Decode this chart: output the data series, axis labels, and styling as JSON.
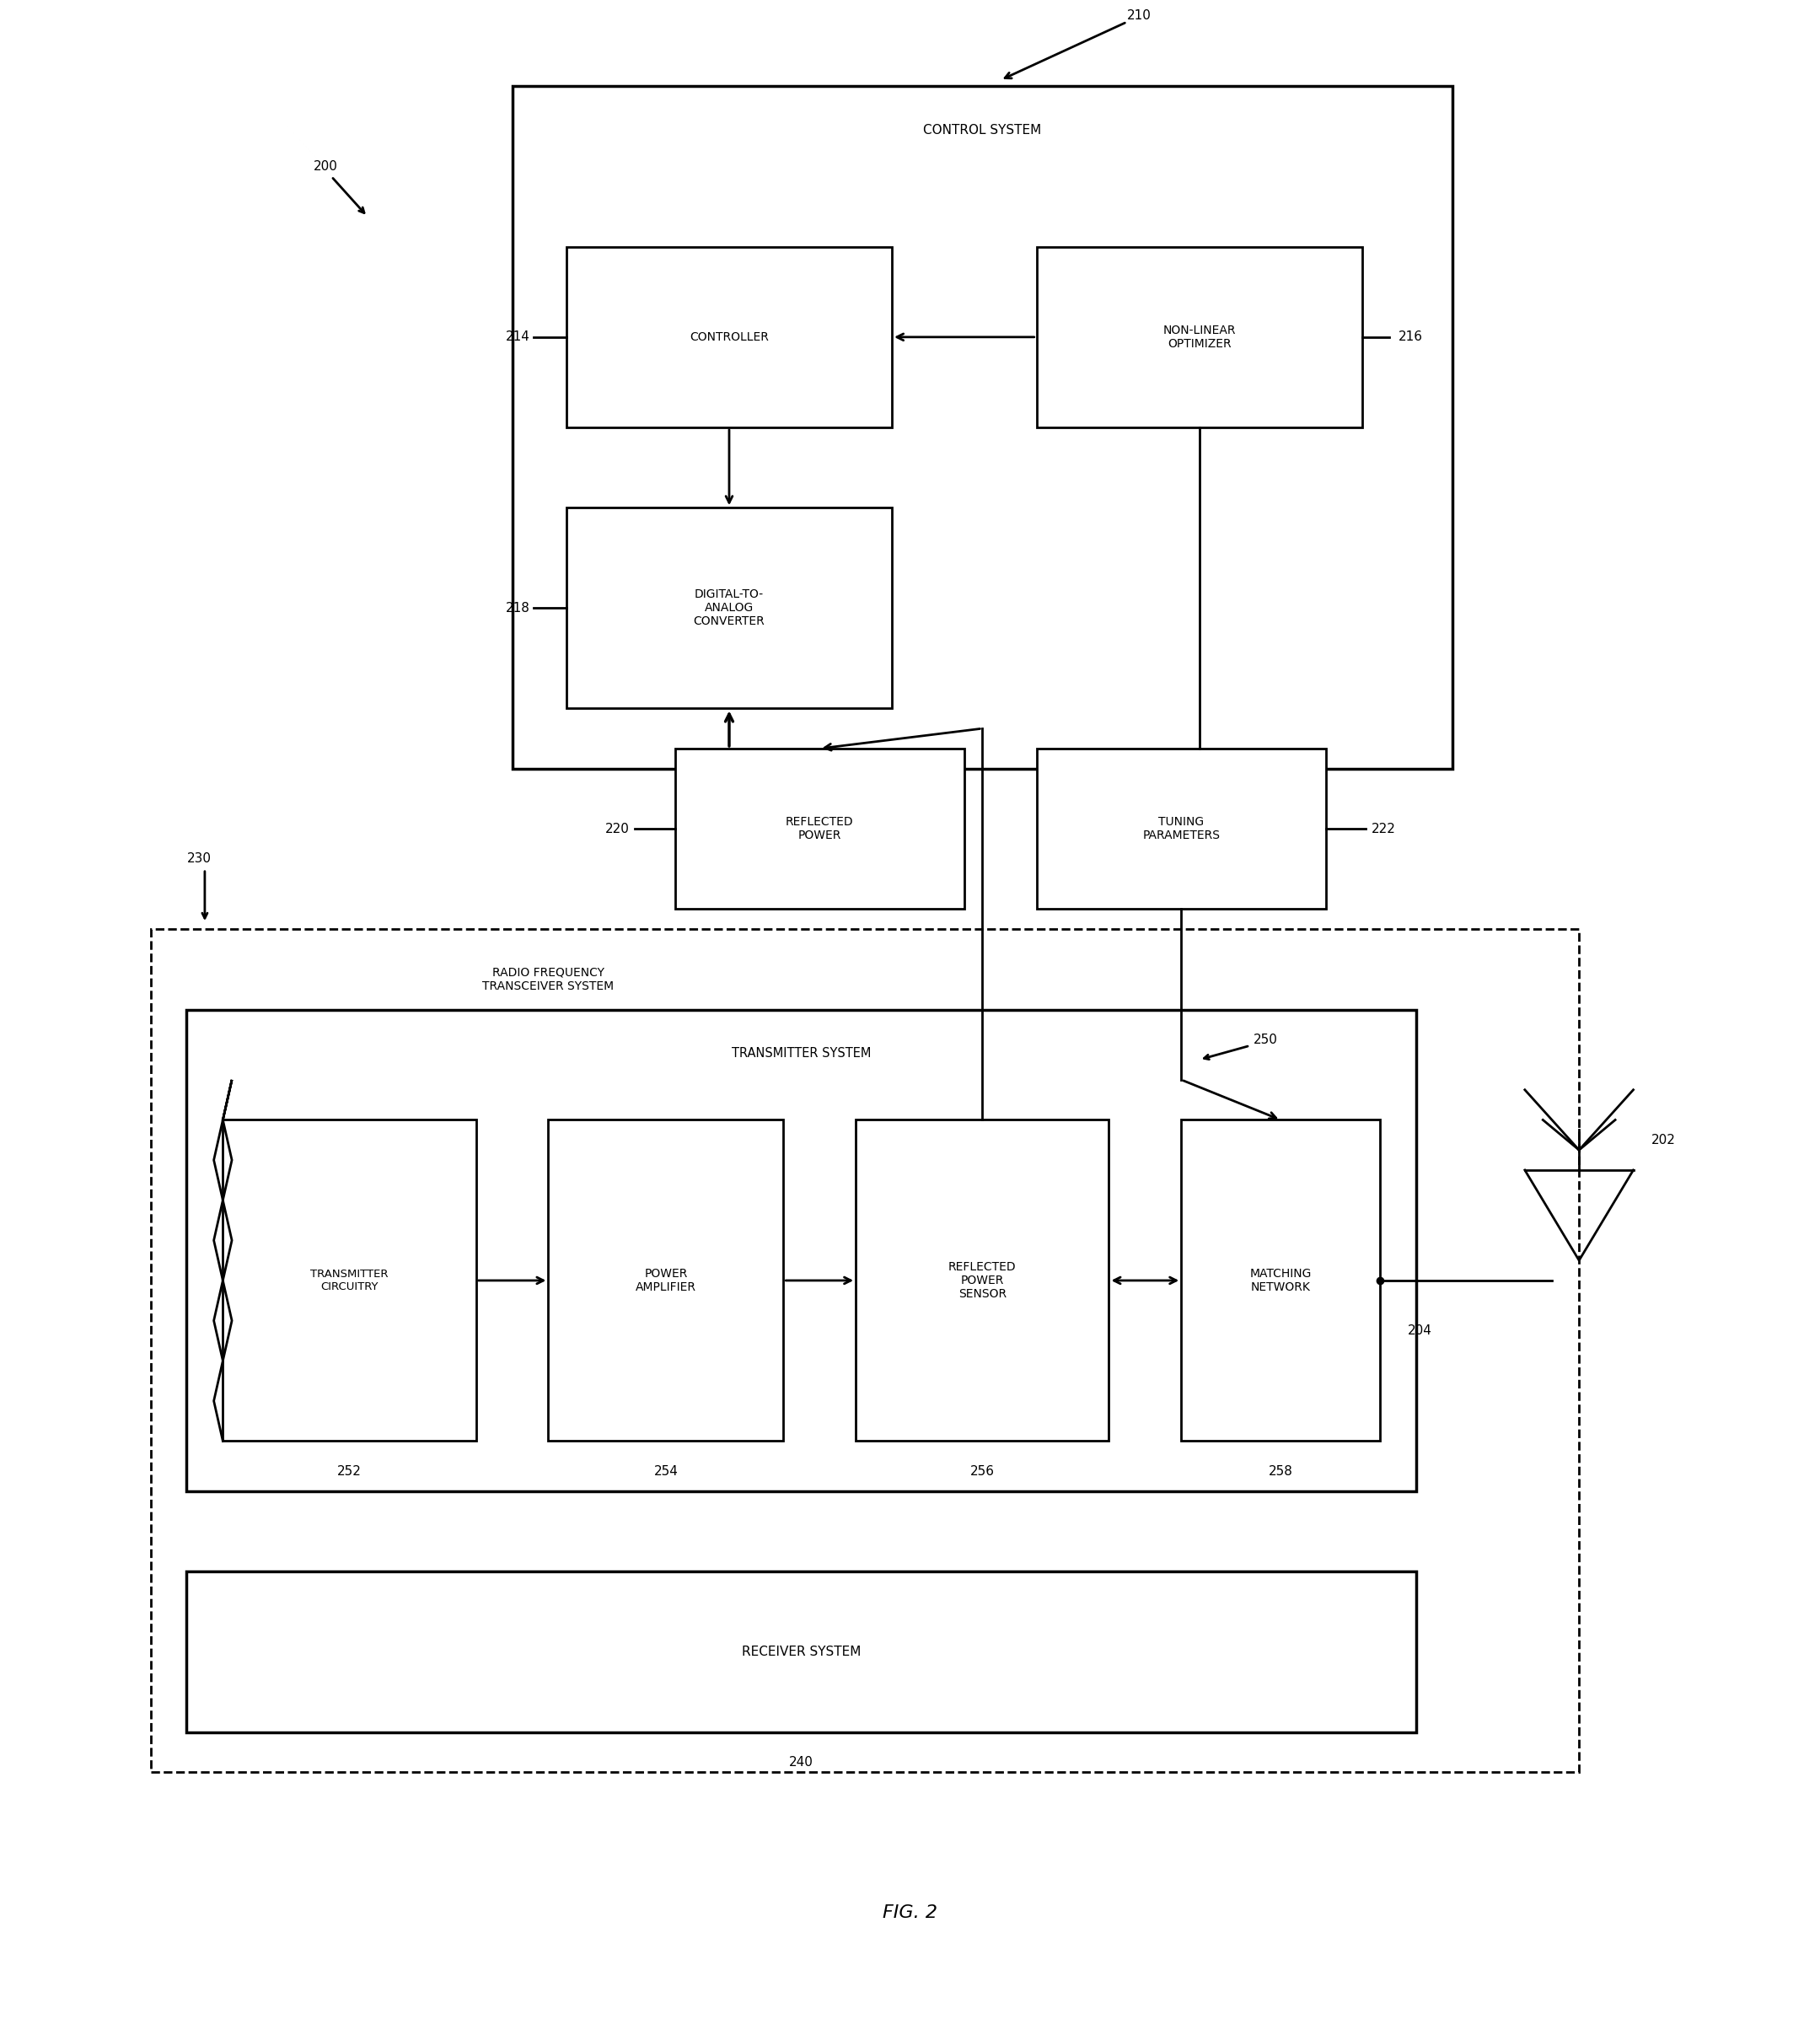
{
  "title": "FIG. 2",
  "bg_color": "#ffffff",
  "line_color": "#000000",
  "fig_width": 21.59,
  "fig_height": 23.95,
  "labels": {
    "200": "200",
    "210": "210",
    "214": "214",
    "216": "216",
    "218": "218",
    "220": "220",
    "222": "222",
    "230": "230",
    "240": "240",
    "250": "250",
    "252": "252",
    "254": "254",
    "256": "256",
    "258": "258",
    "202": "202",
    "204": "204"
  },
  "box_texts": {
    "control_system": "CONTROL SYSTEM",
    "controller": "CONTROLLER",
    "nonlinear_optimizer": "NON-LINEAR\nOPTIMIZER",
    "dac": "DIGITAL-TO-\nANALOG\nCONVERTER",
    "reflected_power_box": "REFLECTED\nPOWER",
    "tuning_parameters_box": "TUNING\nPARAMETERS",
    "rf_transceiver": "RADIO FREQUENCY\nTRANSCEIVER SYSTEM",
    "transmitter_system": "TRANSMITTER SYSTEM",
    "transmitter_circuitry": "TRANSMITTER\nCIRCUITRY",
    "power_amplifier": "POWER\nAMPLIFIER",
    "reflected_power_sensor": "REFLECTED\nPOWER\nSENSOR",
    "matching_network": "MATCHING\nNETWORK",
    "receiver_system": "RECEIVER SYSTEM"
  }
}
